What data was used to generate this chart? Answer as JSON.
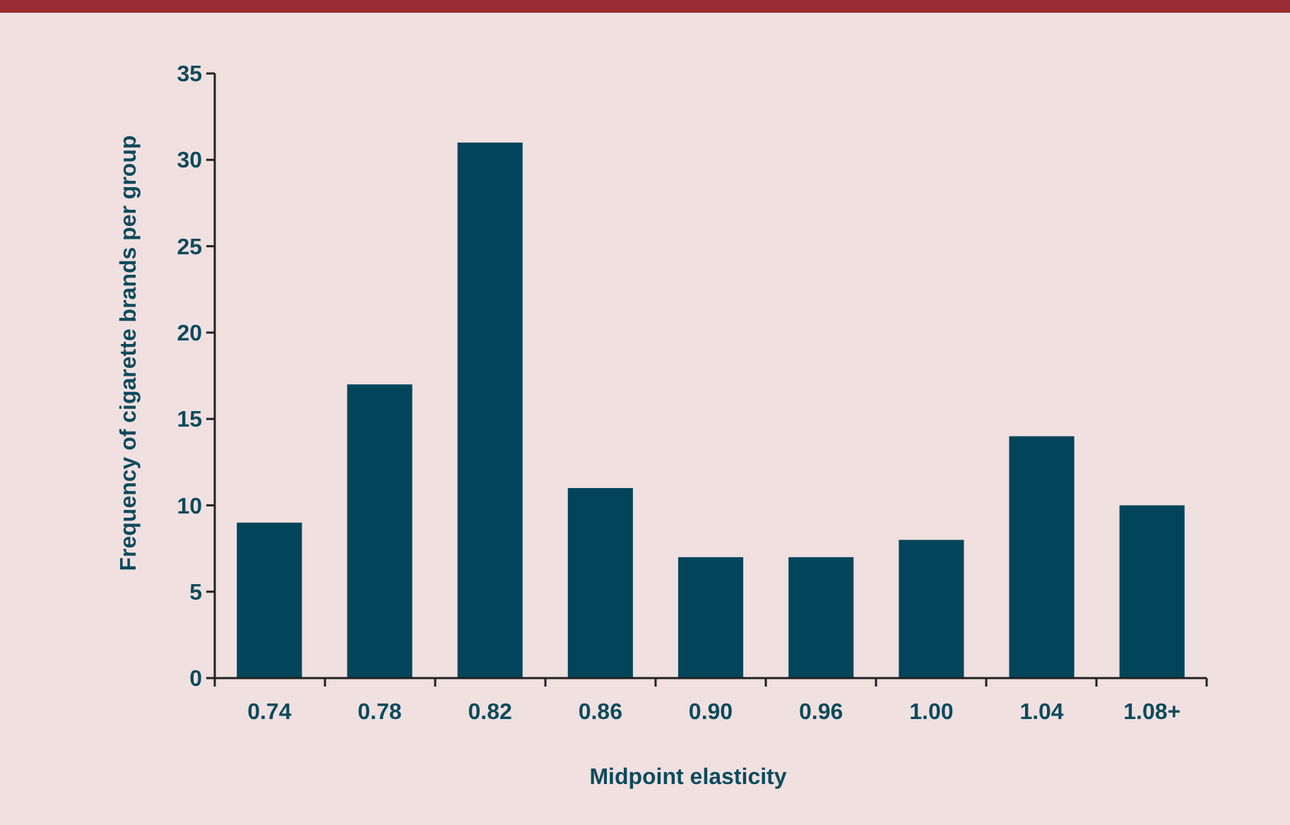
{
  "chart_data": {
    "type": "bar",
    "xlabel": "Midpoint elasticity",
    "ylabel": "Frequency of cigarette brands per group",
    "categories": [
      "0.74",
      "0.78",
      "0.82",
      "0.86",
      "0.90",
      "0.96",
      "1.00",
      "1.04",
      "1.08+"
    ],
    "values": [
      9,
      17,
      31,
      11,
      7,
      7,
      8,
      14,
      10
    ],
    "color": "#02455a",
    "ylim": [
      0,
      35
    ],
    "yticks": [
      0,
      5,
      10,
      15,
      20,
      25,
      30,
      35
    ],
    "grid": false
  }
}
